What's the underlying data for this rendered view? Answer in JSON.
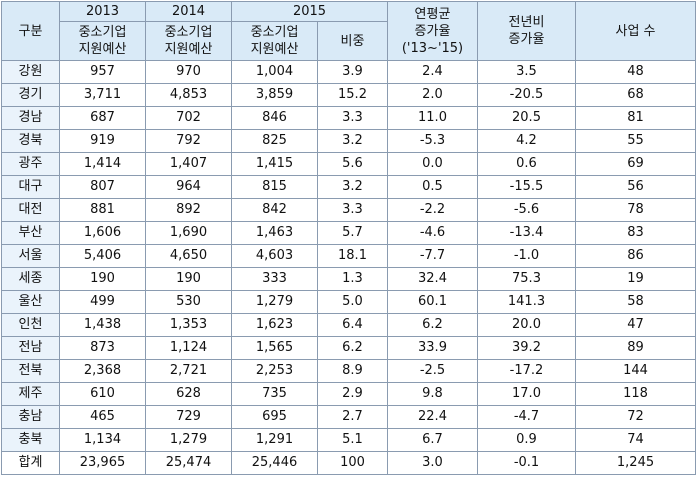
{
  "header": {
    "category": "구분",
    "y2013": "2013",
    "y2014": "2014",
    "y2015": "2015",
    "budget_line1": "중소기업",
    "budget_line2": "지원예산",
    "share": "비중",
    "cagr_line1": "연평균",
    "cagr_line2": "증가율",
    "cagr_line3": "('13~'15)",
    "yoy_line1": "전년비",
    "yoy_line2": "증가율",
    "projects": "사업 수"
  },
  "rows": [
    {
      "region": "강원",
      "b2013": "957",
      "b2014": "970",
      "b2015": "1,004",
      "share": "3.9",
      "cagr": "2.4",
      "yoy": "3.5",
      "projects": "48"
    },
    {
      "region": "경기",
      "b2013": "3,711",
      "b2014": "4,853",
      "b2015": "3,859",
      "share": "15.2",
      "cagr": "2.0",
      "yoy": "-20.5",
      "projects": "68"
    },
    {
      "region": "경남",
      "b2013": "687",
      "b2014": "702",
      "b2015": "846",
      "share": "3.3",
      "cagr": "11.0",
      "yoy": "20.5",
      "projects": "81"
    },
    {
      "region": "경북",
      "b2013": "919",
      "b2014": "792",
      "b2015": "825",
      "share": "3.2",
      "cagr": "-5.3",
      "yoy": "4.2",
      "projects": "55"
    },
    {
      "region": "광주",
      "b2013": "1,414",
      "b2014": "1,407",
      "b2015": "1,415",
      "share": "5.6",
      "cagr": "0.0",
      "yoy": "0.6",
      "projects": "69"
    },
    {
      "region": "대구",
      "b2013": "807",
      "b2014": "964",
      "b2015": "815",
      "share": "3.2",
      "cagr": "0.5",
      "yoy": "-15.5",
      "projects": "56"
    },
    {
      "region": "대전",
      "b2013": "881",
      "b2014": "892",
      "b2015": "842",
      "share": "3.3",
      "cagr": "-2.2",
      "yoy": "-5.6",
      "projects": "78"
    },
    {
      "region": "부산",
      "b2013": "1,606",
      "b2014": "1,690",
      "b2015": "1,463",
      "share": "5.7",
      "cagr": "-4.6",
      "yoy": "-13.4",
      "projects": "83"
    },
    {
      "region": "서울",
      "b2013": "5,406",
      "b2014": "4,650",
      "b2015": "4,603",
      "share": "18.1",
      "cagr": "-7.7",
      "yoy": "-1.0",
      "projects": "86"
    },
    {
      "region": "세종",
      "b2013": "190",
      "b2014": "190",
      "b2015": "333",
      "share": "1.3",
      "cagr": "32.4",
      "yoy": "75.3",
      "projects": "19"
    },
    {
      "region": "울산",
      "b2013": "499",
      "b2014": "530",
      "b2015": "1,279",
      "share": "5.0",
      "cagr": "60.1",
      "yoy": "141.3",
      "projects": "58"
    },
    {
      "region": "인천",
      "b2013": "1,438",
      "b2014": "1,353",
      "b2015": "1,623",
      "share": "6.4",
      "cagr": "6.2",
      "yoy": "20.0",
      "projects": "47"
    },
    {
      "region": "전남",
      "b2013": "873",
      "b2014": "1,124",
      "b2015": "1,565",
      "share": "6.2",
      "cagr": "33.9",
      "yoy": "39.2",
      "projects": "89"
    },
    {
      "region": "전북",
      "b2013": "2,368",
      "b2014": "2,721",
      "b2015": "2,253",
      "share": "8.9",
      "cagr": "-2.5",
      "yoy": "-17.2",
      "projects": "144"
    },
    {
      "region": "제주",
      "b2013": "610",
      "b2014": "628",
      "b2015": "735",
      "share": "2.9",
      "cagr": "9.8",
      "yoy": "17.0",
      "projects": "118"
    },
    {
      "region": "충남",
      "b2013": "465",
      "b2014": "729",
      "b2015": "695",
      "share": "2.7",
      "cagr": "22.4",
      "yoy": "-4.7",
      "projects": "72"
    },
    {
      "region": "충북",
      "b2013": "1,134",
      "b2014": "1,279",
      "b2015": "1,291",
      "share": "5.1",
      "cagr": "6.7",
      "yoy": "0.9",
      "projects": "74"
    },
    {
      "region": "합계",
      "b2013": "23,965",
      "b2014": "25,474",
      "b2015": "25,446",
      "share": "100",
      "cagr": "3.0",
      "yoy": "-0.1",
      "projects": "1,245"
    }
  ]
}
